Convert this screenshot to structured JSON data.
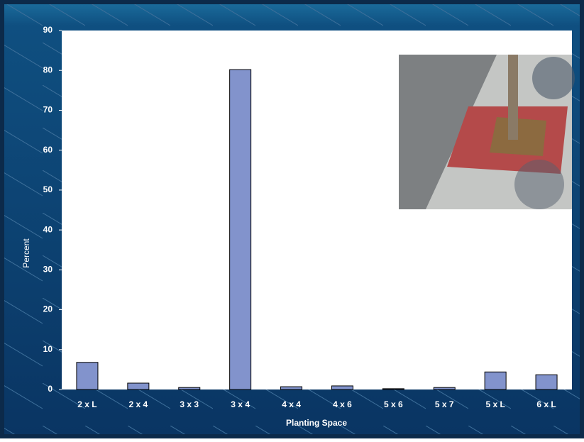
{
  "chart_data": {
    "type": "bar",
    "categories": [
      "2 x L",
      "2 x 4",
      "3 x 3",
      "3 x 4",
      "4 x 4",
      "4 x 6",
      "5 x 6",
      "5 x 7",
      "5 x L",
      "6 x L"
    ],
    "values": [
      6.8,
      1.6,
      0.5,
      80.2,
      0.7,
      0.9,
      0.2,
      0.5,
      4.4,
      3.7
    ],
    "color": "#8293cc",
    "xlabel": "Planting Space",
    "ylabel": "Percent",
    "ylim": [
      0,
      90
    ],
    "yticks": [
      0,
      10,
      20,
      30,
      40,
      50,
      60,
      70,
      80,
      90
    ]
  }
}
